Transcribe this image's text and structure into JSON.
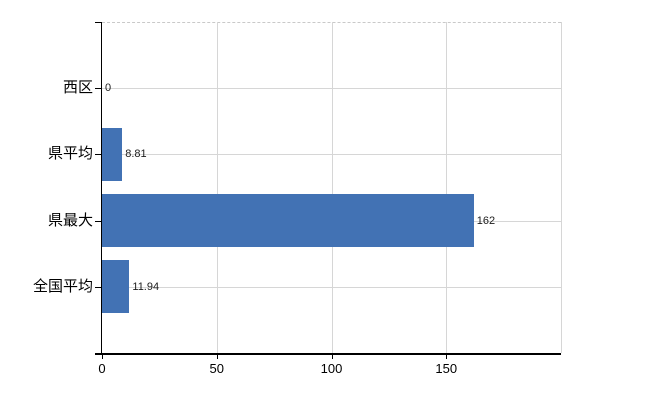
{
  "chart_data": {
    "type": "bar",
    "orientation": "horizontal",
    "title": "",
    "xlabel": "",
    "ylabel": "",
    "categories": [
      "西区",
      "県平均",
      "県最大",
      "全国平均"
    ],
    "values": [
      0,
      8.81,
      162,
      11.94
    ],
    "value_labels": [
      "0",
      "8.81",
      "162",
      "11.94"
    ],
    "xlim": [
      0,
      200
    ],
    "xticks": [
      0,
      50,
      100,
      150
    ],
    "xtick_labels": [
      "0",
      "50",
      "100",
      "150"
    ],
    "vertical_gridlines": [
      50,
      100,
      150,
      200
    ],
    "grid": true,
    "legend_position": "none",
    "bar_color": "#4272b4",
    "gridline_color": "#d6d6d6",
    "axis_color": "#000000",
    "label_color": "#000000",
    "background_color": "#ffffff"
  }
}
